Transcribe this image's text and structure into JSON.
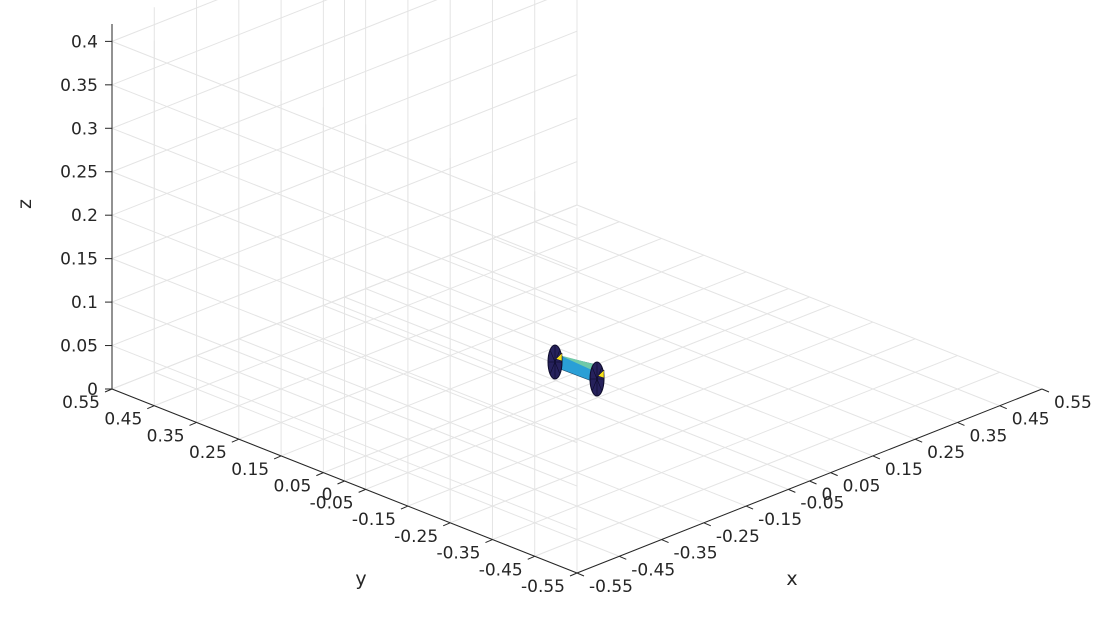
{
  "chart_data": {
    "type": "surface3d",
    "title": "",
    "xlabel": "x",
    "ylabel": "y",
    "zlabel": "z",
    "xlim": [
      -0.55,
      0.55
    ],
    "ylim": [
      -0.55,
      0.55
    ],
    "zlim": [
      0,
      0.42
    ],
    "grid": true,
    "box": false,
    "x_ticks": [
      "-0.55",
      "-0.45",
      "-0.35",
      "-0.25",
      "-0.15",
      "-0.05",
      "0",
      "0.05",
      "0.15",
      "0.25",
      "0.35",
      "0.45",
      "0.55"
    ],
    "y_ticks": [
      "0.55",
      "0.45",
      "0.35",
      "0.25",
      "0.15",
      "0.05",
      "0",
      "-0.05",
      "-0.15",
      "-0.25",
      "-0.35",
      "-0.45",
      "-0.55"
    ],
    "z_ticks": [
      "0",
      "0.05",
      "0.1",
      "0.15",
      "0.2",
      "0.25",
      "0.3",
      "0.35",
      "0.4"
    ],
    "object": {
      "description": "two small wheel-like discs joined by an axle",
      "colormap": "parula",
      "disc_color": "#26215c",
      "accent_color": "#f7e21a",
      "axle_color": "#2a9fd6"
    }
  }
}
